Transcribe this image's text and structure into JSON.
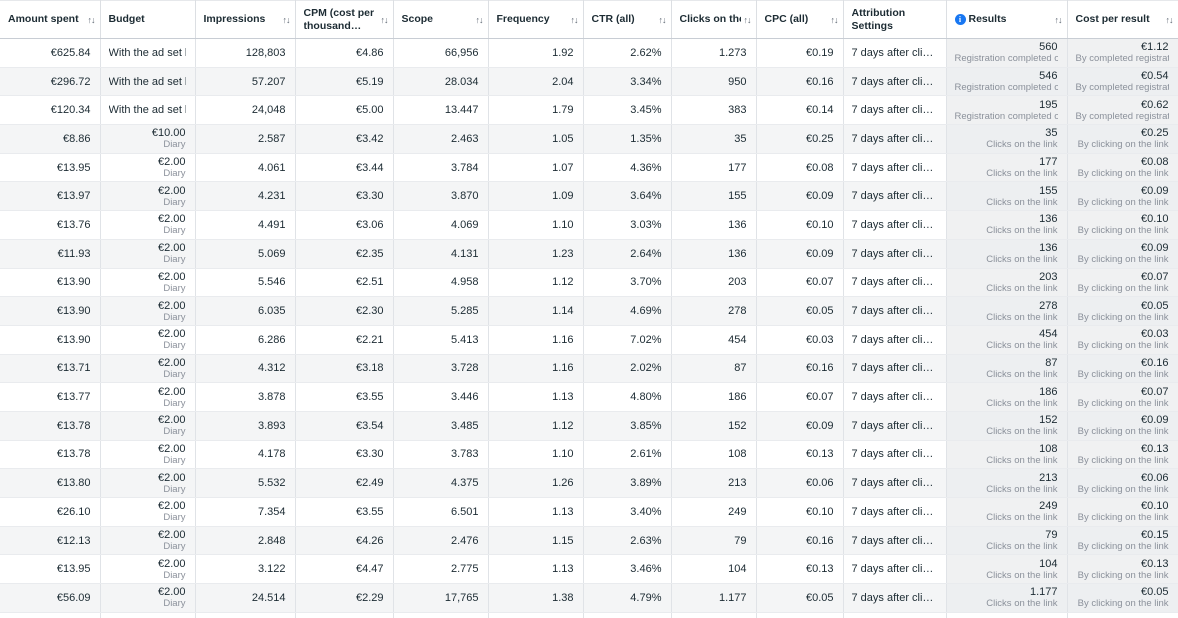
{
  "icons": {
    "sort": "↑↓",
    "info": "i"
  },
  "colors": {
    "accent_blue": "#1877f2",
    "stripe": "#f4f5f6",
    "tinted_column": "#f0f1f2",
    "subtext": "#8b919b"
  },
  "table": {
    "partial_bottom_row": true,
    "columns": [
      {
        "key": "amount_spent",
        "label": "Amount spent",
        "sortable": true,
        "align": "right",
        "wrap": false,
        "tinted": false
      },
      {
        "key": "budget",
        "label": "Budget",
        "sortable": false,
        "align": "right",
        "wrap": false,
        "tinted": false
      },
      {
        "key": "impressions",
        "label": "Impressions",
        "sortable": true,
        "align": "right",
        "wrap": false,
        "tinted": false
      },
      {
        "key": "cpm",
        "label": "CPM (cost per thousand…",
        "sortable": true,
        "align": "right",
        "wrap": true,
        "tinted": false
      },
      {
        "key": "scope",
        "label": "Scope",
        "sortable": true,
        "align": "right",
        "wrap": false,
        "tinted": false
      },
      {
        "key": "frequency",
        "label": "Frequency",
        "sortable": true,
        "align": "right",
        "wrap": false,
        "tinted": false
      },
      {
        "key": "ctr",
        "label": "CTR (all)",
        "sortable": true,
        "align": "right",
        "wrap": false,
        "tinted": false
      },
      {
        "key": "link_clicks",
        "label": "Clicks on the link",
        "sortable": true,
        "align": "right",
        "wrap": false,
        "tinted": false
      },
      {
        "key": "cpc",
        "label": "CPC (all)",
        "sortable": true,
        "align": "right",
        "wrap": false,
        "tinted": false
      },
      {
        "key": "attribution",
        "label": "Attribution Settings",
        "sortable": false,
        "align": "left",
        "wrap": true,
        "tinted": false
      },
      {
        "key": "results",
        "label": "Results",
        "sortable": true,
        "align": "right",
        "wrap": false,
        "tinted": true,
        "info": true
      },
      {
        "key": "cost_per_result",
        "label": "Cost per result",
        "sortable": true,
        "align": "right",
        "wrap": false,
        "tinted": true
      }
    ],
    "rows": [
      {
        "amount_spent": "€625.84",
        "budget": "With the ad set bu…",
        "impressions": "128,803",
        "cpm": "€4.86",
        "scope": "66,956",
        "frequency": "1.92",
        "ctr": "2.62%",
        "link_clicks": "1.273",
        "cpc": "€0.19",
        "attribution": "7 days after cli…",
        "results": "560",
        "results_sub": "Registration completed on…",
        "results_dotted": true,
        "cost_per_result": "€1.12",
        "cost_per_result_sub": "By completed registration",
        "cost_per_result_dotted": true
      },
      {
        "amount_spent": "€296.72",
        "budget": "With the ad set bu…",
        "impressions": "57.207",
        "cpm": "€5.19",
        "scope": "28.034",
        "frequency": "2.04",
        "ctr": "3.34%",
        "link_clicks": "950",
        "cpc": "€0.16",
        "attribution": "7 days after cli…",
        "results": "546",
        "results_sub": "Registration completed on…",
        "results_dotted": true,
        "cost_per_result": "€0.54",
        "cost_per_result_sub": "By completed registration",
        "cost_per_result_dotted": true
      },
      {
        "amount_spent": "€120.34",
        "budget": "With the ad set bu…",
        "impressions": "24,048",
        "cpm": "€5.00",
        "scope": "13.447",
        "frequency": "1.79",
        "ctr": "3.45%",
        "link_clicks": "383",
        "cpc": "€0.14",
        "attribution": "7 days after cli…",
        "results": "195",
        "results_sub": "Registration completed on…",
        "results_dotted": true,
        "cost_per_result": "€0.62",
        "cost_per_result_sub": "By completed registration",
        "cost_per_result_dotted": true
      },
      {
        "amount_spent": "€8.86",
        "budget": "€10.00",
        "budget_sub": "Diary",
        "impressions": "2.587",
        "cpm": "€3.42",
        "scope": "2.463",
        "frequency": "1.05",
        "ctr": "1.35%",
        "link_clicks": "35",
        "cpc": "€0.25",
        "attribution": "7 days after cli…",
        "results": "35",
        "results_sub": "Clicks on the link",
        "cost_per_result": "€0.25",
        "cost_per_result_sub": "By clicking on the link"
      },
      {
        "amount_spent": "€13.95",
        "budget": "€2.00",
        "budget_sub": "Diary",
        "impressions": "4.061",
        "cpm": "€3.44",
        "scope": "3.784",
        "frequency": "1.07",
        "ctr": "4.36%",
        "link_clicks": "177",
        "cpc": "€0.08",
        "attribution": "7 days after cli…",
        "results": "177",
        "results_sub": "Clicks on the link",
        "cost_per_result": "€0.08",
        "cost_per_result_sub": "By clicking on the link"
      },
      {
        "amount_spent": "€13.97",
        "budget": "€2.00",
        "budget_sub": "Diary",
        "impressions": "4.231",
        "cpm": "€3.30",
        "scope": "3.870",
        "frequency": "1.09",
        "ctr": "3.64%",
        "link_clicks": "155",
        "cpc": "€0.09",
        "attribution": "7 days after cli…",
        "results": "155",
        "results_sub": "Clicks on the link",
        "cost_per_result": "€0.09",
        "cost_per_result_sub": "By clicking on the link"
      },
      {
        "amount_spent": "€13.76",
        "budget": "€2.00",
        "budget_sub": "Diary",
        "impressions": "4.491",
        "cpm": "€3.06",
        "scope": "4.069",
        "frequency": "1.10",
        "ctr": "3.03%",
        "link_clicks": "136",
        "cpc": "€0.10",
        "attribution": "7 days after cli…",
        "results": "136",
        "results_sub": "Clicks on the link",
        "cost_per_result": "€0.10",
        "cost_per_result_sub": "By clicking on the link"
      },
      {
        "amount_spent": "€11.93",
        "budget": "€2.00",
        "budget_sub": "Diary",
        "impressions": "5.069",
        "cpm": "€2.35",
        "scope": "4.131",
        "frequency": "1.23",
        "ctr": "2.64%",
        "link_clicks": "136",
        "cpc": "€0.09",
        "attribution": "7 days after cli…",
        "results": "136",
        "results_sub": "Clicks on the link",
        "cost_per_result": "€0.09",
        "cost_per_result_sub": "By clicking on the link"
      },
      {
        "amount_spent": "€13.90",
        "budget": "€2.00",
        "budget_sub": "Diary",
        "impressions": "5.546",
        "cpm": "€2.51",
        "scope": "4.958",
        "frequency": "1.12",
        "ctr": "3.70%",
        "link_clicks": "203",
        "cpc": "€0.07",
        "attribution": "7 days after cli…",
        "results": "203",
        "results_sub": "Clicks on the link",
        "cost_per_result": "€0.07",
        "cost_per_result_sub": "By clicking on the link"
      },
      {
        "amount_spent": "€13.90",
        "budget": "€2.00",
        "budget_sub": "Diary",
        "impressions": "6.035",
        "cpm": "€2.30",
        "scope": "5.285",
        "frequency": "1.14",
        "ctr": "4.69%",
        "link_clicks": "278",
        "cpc": "€0.05",
        "attribution": "7 days after cli…",
        "results": "278",
        "results_sub": "Clicks on the link",
        "cost_per_result": "€0.05",
        "cost_per_result_sub": "By clicking on the link"
      },
      {
        "amount_spent": "€13.90",
        "budget": "€2.00",
        "budget_sub": "Diary",
        "impressions": "6.286",
        "cpm": "€2.21",
        "scope": "5.413",
        "frequency": "1.16",
        "ctr": "7.02%",
        "link_clicks": "454",
        "cpc": "€0.03",
        "attribution": "7 days after cli…",
        "results": "454",
        "results_sub": "Clicks on the link",
        "cost_per_result": "€0.03",
        "cost_per_result_sub": "By clicking on the link"
      },
      {
        "amount_spent": "€13.71",
        "budget": "€2.00",
        "budget_sub": "Diary",
        "impressions": "4.312",
        "cpm": "€3.18",
        "scope": "3.728",
        "frequency": "1.16",
        "ctr": "2.02%",
        "link_clicks": "87",
        "cpc": "€0.16",
        "attribution": "7 days after cli…",
        "results": "87",
        "results_sub": "Clicks on the link",
        "cost_per_result": "€0.16",
        "cost_per_result_sub": "By clicking on the link"
      },
      {
        "amount_spent": "€13.77",
        "budget": "€2.00",
        "budget_sub": "Diary",
        "impressions": "3.878",
        "cpm": "€3.55",
        "scope": "3.446",
        "frequency": "1.13",
        "ctr": "4.80%",
        "link_clicks": "186",
        "cpc": "€0.07",
        "attribution": "7 days after cli…",
        "results": "186",
        "results_sub": "Clicks on the link",
        "cost_per_result": "€0.07",
        "cost_per_result_sub": "By clicking on the link"
      },
      {
        "amount_spent": "€13.78",
        "budget": "€2.00",
        "budget_sub": "Diary",
        "impressions": "3.893",
        "cpm": "€3.54",
        "scope": "3.485",
        "frequency": "1.12",
        "ctr": "3.85%",
        "link_clicks": "152",
        "cpc": "€0.09",
        "attribution": "7 days after cli…",
        "results": "152",
        "results_sub": "Clicks on the link",
        "cost_per_result": "€0.09",
        "cost_per_result_sub": "By clicking on the link"
      },
      {
        "amount_spent": "€13.78",
        "budget": "€2.00",
        "budget_sub": "Diary",
        "impressions": "4.178",
        "cpm": "€3.30",
        "scope": "3.783",
        "frequency": "1.10",
        "ctr": "2.61%",
        "link_clicks": "108",
        "cpc": "€0.13",
        "attribution": "7 days after cli…",
        "results": "108",
        "results_sub": "Clicks on the link",
        "cost_per_result": "€0.13",
        "cost_per_result_sub": "By clicking on the link"
      },
      {
        "amount_spent": "€13.80",
        "budget": "€2.00",
        "budget_sub": "Diary",
        "impressions": "5.532",
        "cpm": "€2.49",
        "scope": "4.375",
        "frequency": "1.26",
        "ctr": "3.89%",
        "link_clicks": "213",
        "cpc": "€0.06",
        "attribution": "7 days after cli…",
        "results": "213",
        "results_sub": "Clicks on the link",
        "cost_per_result": "€0.06",
        "cost_per_result_sub": "By clicking on the link"
      },
      {
        "amount_spent": "€26.10",
        "budget": "€2.00",
        "budget_sub": "Diary",
        "impressions": "7.354",
        "cpm": "€3.55",
        "scope": "6.501",
        "frequency": "1.13",
        "ctr": "3.40%",
        "link_clicks": "249",
        "cpc": "€0.10",
        "attribution": "7 days after cli…",
        "results": "249",
        "results_sub": "Clicks on the link",
        "cost_per_result": "€0.10",
        "cost_per_result_sub": "By clicking on the link"
      },
      {
        "amount_spent": "€12.13",
        "budget": "€2.00",
        "budget_sub": "Diary",
        "impressions": "2.848",
        "cpm": "€4.26",
        "scope": "2.476",
        "frequency": "1.15",
        "ctr": "2.63%",
        "link_clicks": "79",
        "cpc": "€0.16",
        "attribution": "7 days after cli…",
        "results": "79",
        "results_sub": "Clicks on the link",
        "cost_per_result": "€0.15",
        "cost_per_result_sub": "By clicking on the link"
      },
      {
        "amount_spent": "€13.95",
        "budget": "€2.00",
        "budget_sub": "Diary",
        "impressions": "3.122",
        "cpm": "€4.47",
        "scope": "2.775",
        "frequency": "1.13",
        "ctr": "3.46%",
        "link_clicks": "104",
        "cpc": "€0.13",
        "attribution": "7 days after cli…",
        "results": "104",
        "results_sub": "Clicks on the link",
        "cost_per_result": "€0.13",
        "cost_per_result_sub": "By clicking on the link"
      },
      {
        "amount_spent": "€56.09",
        "budget": "€2.00",
        "budget_sub": "Diary",
        "impressions": "24.514",
        "cpm": "€2.29",
        "scope": "17,765",
        "frequency": "1.38",
        "ctr": "4.79%",
        "link_clicks": "1.177",
        "cpc": "€0.05",
        "attribution": "7 days after cli…",
        "results": "1.177",
        "results_sub": "Clicks on the link",
        "cost_per_result": "€0.05",
        "cost_per_result_sub": "By clicking on the link"
      }
    ]
  }
}
